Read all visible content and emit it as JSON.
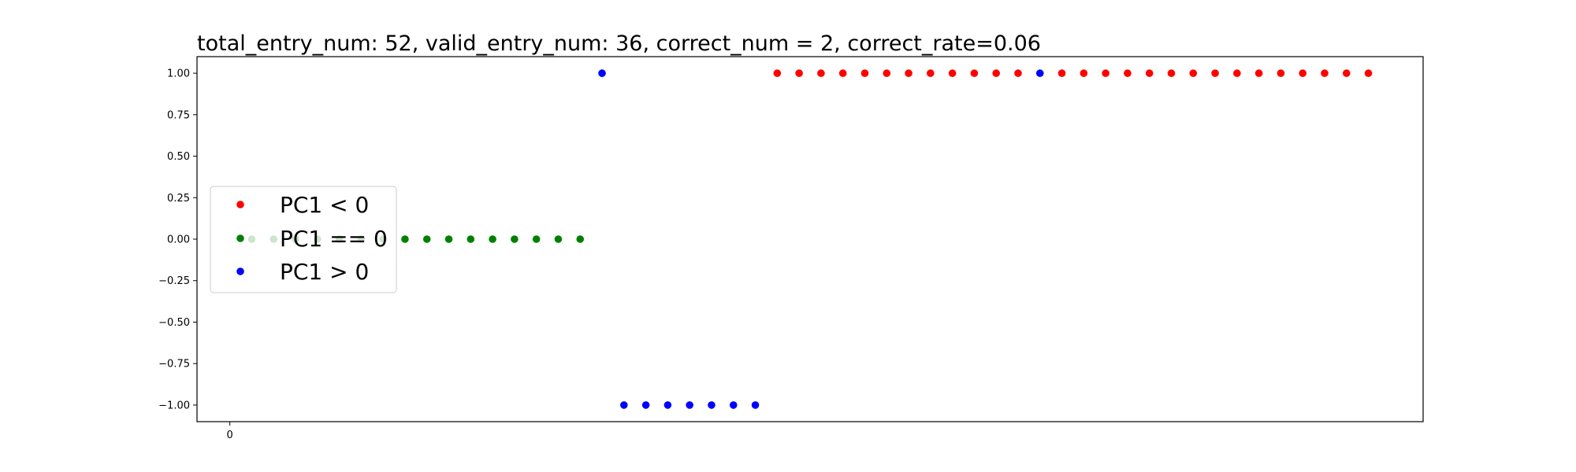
{
  "chart_data": {
    "type": "scatter",
    "title": "total_entry_num: 52, valid_entry_num: 36, correct_num = 2, correct_rate=0.06",
    "xlabel": "",
    "ylabel": "",
    "xlim": [
      -1.5,
      54.5
    ],
    "ylim": [
      -1.1,
      1.1
    ],
    "x_ticks": [
      0
    ],
    "x_tick_labels": [
      "0"
    ],
    "y_ticks": [
      1.0,
      0.75,
      0.5,
      0.25,
      0.0,
      -0.25,
      -0.5,
      -0.75,
      -1.0
    ],
    "y_tick_labels": [
      "1.00",
      "0.75",
      "0.50",
      "0.25",
      "0.00",
      "−0.25",
      "−0.50",
      "−0.75",
      "−1.00"
    ],
    "grid": false,
    "legend_position": "center-left",
    "series": [
      {
        "name": "PC1 < 0",
        "color": "#ff0000",
        "x": [
          25,
          26,
          27,
          28,
          29,
          30,
          31,
          32,
          33,
          34,
          35,
          36,
          38,
          39,
          40,
          41,
          42,
          43,
          44,
          45,
          46,
          47,
          48,
          49,
          50,
          51,
          52
        ],
        "y": [
          1,
          1,
          1,
          1,
          1,
          1,
          1,
          1,
          1,
          1,
          1,
          1,
          1,
          1,
          1,
          1,
          1,
          1,
          1,
          1,
          1,
          1,
          1,
          1,
          1,
          1,
          1
        ]
      },
      {
        "name": "PC1 == 0",
        "color": "#008000",
        "x": [
          1,
          2,
          3,
          4,
          5,
          6,
          7,
          8,
          9,
          10,
          11,
          12,
          13,
          14,
          15,
          16
        ],
        "y": [
          0,
          0,
          0,
          0,
          0,
          0,
          0,
          0,
          0,
          0,
          0,
          0,
          0,
          0,
          0,
          0
        ]
      },
      {
        "name": "PC1 > 0",
        "color": "#0000ff",
        "x": [
          17,
          18,
          19,
          20,
          21,
          22,
          23,
          24,
          37
        ],
        "y": [
          1,
          -1,
          -1,
          -1,
          -1,
          -1,
          -1,
          -1,
          1
        ]
      }
    ]
  }
}
